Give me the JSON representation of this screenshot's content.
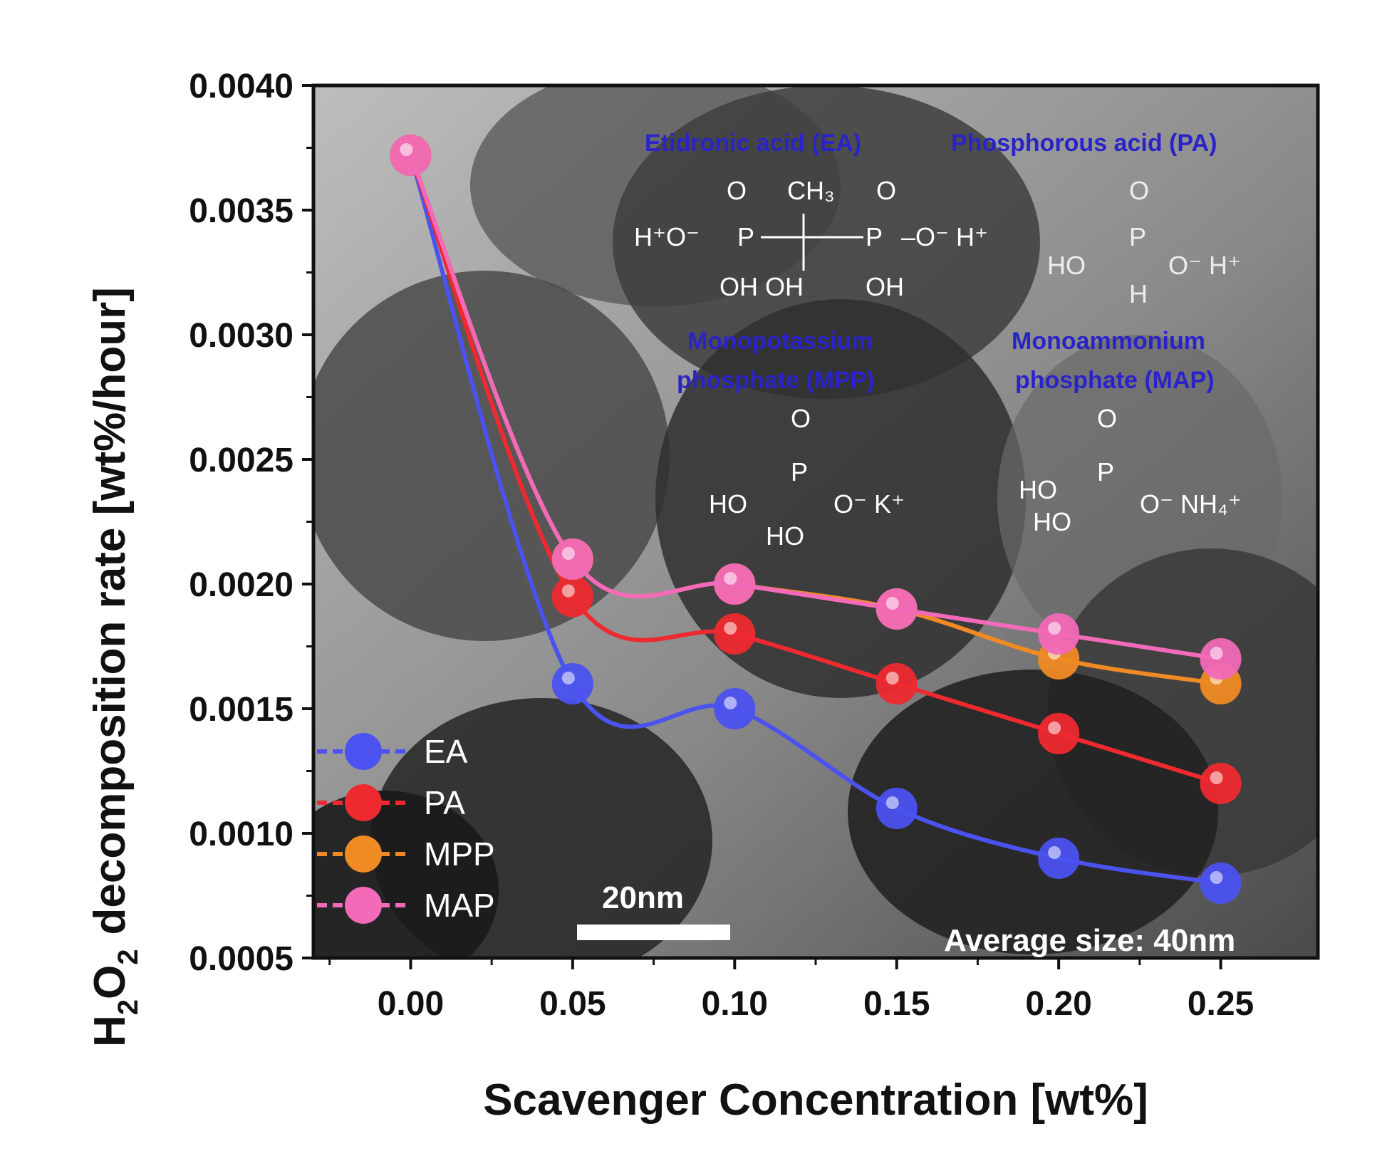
{
  "chart_data": {
    "type": "line",
    "xlabel": "Scavenger Concentration [wt%]",
    "ylabel_main": "decomposition rate [wt%/hour]",
    "ylabel_prefix": "H",
    "ylabel_sub1": "2",
    "ylabel_o": "O",
    "ylabel_sub2": "2",
    "xlim": [
      -0.03,
      0.28
    ],
    "ylim": [
      0.0005,
      0.004
    ],
    "x_ticks": [
      0.0,
      0.05,
      0.1,
      0.15,
      0.2,
      0.25
    ],
    "x_tick_labels": [
      "0.00",
      "0.05",
      "0.10",
      "0.15",
      "0.20",
      "0.25"
    ],
    "y_ticks": [
      0.0005,
      0.001,
      0.0015,
      0.002,
      0.0025,
      0.003,
      0.0035,
      0.004
    ],
    "y_tick_labels": [
      "0.0005",
      "0.0010",
      "0.0015",
      "0.0020",
      "0.0025",
      "0.0030",
      "0.0035",
      "0.0040"
    ],
    "grid": false,
    "legend_position": "bottom-left",
    "x": [
      0.0,
      0.05,
      0.1,
      0.15,
      0.2,
      0.25
    ],
    "series": [
      {
        "name": "EA",
        "color": "#4b52f0",
        "values": [
          0.00372,
          0.0016,
          0.0015,
          0.0011,
          0.0009,
          0.0008
        ]
      },
      {
        "name": "PA",
        "color": "#ee2a30",
        "values": [
          0.00372,
          0.00195,
          0.0018,
          0.0016,
          0.0014,
          0.0012
        ]
      },
      {
        "name": "MPP",
        "color": "#f08a24",
        "values": [
          0.00372,
          0.0021,
          0.002,
          0.0019,
          0.0017,
          0.0016
        ]
      },
      {
        "name": "MAP",
        "color": "#f26ab8",
        "values": [
          0.00372,
          0.0021,
          0.002,
          0.0019,
          0.0018,
          0.0017
        ]
      }
    ],
    "annotations": {
      "ea_label": "Etidronic acid (EA)",
      "pa_label": "Phosphorous acid (PA)",
      "mpp_label_1": "Monopotassium",
      "mpp_label_2": "phosphate (MPP)",
      "map_label_1": "Monoammonium",
      "map_label_2": "phosphate (MAP)",
      "scale_bar": "20nm",
      "average_size": "Average size: 40nm"
    }
  }
}
